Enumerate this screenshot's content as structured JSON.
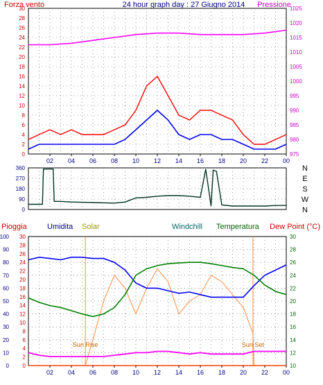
{
  "chart_data": [
    {
      "id": "wind",
      "type": "line",
      "title": "24 hour graph day : 27 Giugno 2014",
      "left_label": "Forza vento",
      "right_label": "Pressione",
      "y_left_ticks": [
        0,
        2,
        4,
        6,
        8,
        10,
        12,
        14,
        16,
        18,
        20,
        22,
        24,
        26,
        28,
        30
      ],
      "y_right_ticks": [
        975,
        980,
        985,
        990,
        995,
        1000,
        1005,
        1010,
        1015,
        1020,
        1025
      ],
      "ylim_left": [
        0,
        30
      ],
      "ylim_right": [
        975,
        1025
      ],
      "x_ticks": [
        "02",
        "04",
        "06",
        "08",
        "10",
        "12",
        "14",
        "16",
        "18",
        "20",
        "22",
        "00"
      ],
      "grid": true,
      "series": [
        {
          "color": "#ff0000",
          "axis": "left",
          "x": [
            0,
            1,
            2,
            3,
            4,
            5,
            6,
            7,
            8,
            9,
            10,
            11,
            12,
            13,
            14,
            15,
            16,
            17,
            18,
            19,
            20,
            21,
            22,
            23,
            24
          ],
          "y": [
            3,
            4,
            5,
            4,
            5,
            4,
            4,
            4,
            5,
            6,
            9,
            14,
            16,
            12,
            8,
            7,
            9,
            9,
            8,
            7,
            4,
            2,
            2,
            3,
            4
          ]
        },
        {
          "color": "#0000ff",
          "axis": "left",
          "x": [
            0,
            1,
            2,
            3,
            4,
            5,
            6,
            7,
            8,
            9,
            10,
            11,
            12,
            13,
            14,
            15,
            16,
            17,
            18,
            19,
            20,
            21,
            22,
            23,
            24
          ],
          "y": [
            1,
            2,
            2,
            2,
            2,
            2,
            2,
            2,
            2,
            3,
            5,
            7,
            9,
            7,
            4,
            3,
            4,
            4,
            3,
            3,
            2,
            1,
            1,
            1,
            2
          ]
        },
        {
          "color": "#ff00ff",
          "axis": "right",
          "x": [
            0,
            2,
            4,
            6,
            8,
            10,
            12,
            14,
            16,
            18,
            20,
            22,
            24
          ],
          "y": [
            1012.5,
            1012.5,
            1013,
            1014,
            1015,
            1016,
            1016.5,
            1016.5,
            1016,
            1016,
            1016,
            1016.5,
            1017.5
          ]
        }
      ]
    },
    {
      "id": "direction",
      "type": "line",
      "y_left_ticks": [
        0,
        90,
        180,
        270,
        360
      ],
      "ylim": [
        0,
        360
      ],
      "compass_labels": [
        "N",
        "W",
        "S",
        "E",
        "N"
      ],
      "grid": true,
      "series": [
        {
          "color": "#003322",
          "x": [
            0,
            1.3,
            1.4,
            2.3,
            2.4,
            3,
            4,
            6,
            8,
            9,
            10,
            11,
            12,
            13,
            14,
            15,
            16,
            16.5,
            17,
            17.2,
            17.5,
            18,
            19,
            20,
            21,
            22,
            23,
            24
          ],
          "y": [
            45,
            45,
            350,
            350,
            70,
            70,
            65,
            60,
            55,
            65,
            100,
            105,
            115,
            120,
            120,
            115,
            105,
            350,
            30,
            340,
            330,
            40,
            30,
            30,
            30,
            30,
            35,
            35
          ]
        }
      ]
    },
    {
      "id": "weather",
      "type": "line",
      "labels": [
        "Pioggia",
        "Umidita",
        "Solar",
        "Windchill",
        "Temperatura",
        "Dew Point (°C)"
      ],
      "y_left_ticks": [
        0,
        10,
        20,
        30,
        40,
        50,
        60,
        70,
        80,
        90,
        100
      ],
      "y_left2_ticks": [
        0,
        2,
        4,
        6,
        8,
        10,
        12,
        14,
        16,
        18,
        20,
        22,
        24,
        26,
        28,
        30
      ],
      "y_right_ticks": [
        10,
        12,
        14,
        16,
        18,
        20,
        22,
        24,
        26,
        28,
        30
      ],
      "ylim_left": [
        0,
        100
      ],
      "ylim_right": [
        10,
        30
      ],
      "x_ticks": [
        "02",
        "04",
        "06",
        "08",
        "10",
        "12",
        "14",
        "16",
        "18",
        "20",
        "22",
        "00"
      ],
      "annotations": [
        {
          "text": "Sun Rise",
          "x": 5.3
        },
        {
          "text": "Sun Set",
          "x": 20.9
        }
      ],
      "grid": true,
      "series": [
        {
          "color": "#0000ff",
          "axis": "left",
          "x": [
            0,
            1,
            2,
            3,
            4,
            5,
            6,
            7,
            8,
            9,
            10,
            11,
            12,
            13,
            14,
            15,
            16,
            17,
            18,
            19,
            20,
            21,
            22,
            23,
            24
          ],
          "y": [
            82,
            84,
            83,
            82,
            84,
            84,
            83,
            83,
            80,
            74,
            64,
            60,
            60,
            58,
            56,
            57,
            55,
            53,
            53,
            53,
            53,
            62,
            70,
            74,
            78
          ]
        },
        {
          "color": "#008000",
          "axis": "right",
          "x": [
            0,
            1,
            2,
            3,
            4,
            5,
            6,
            7,
            8,
            9,
            10,
            11,
            12,
            13,
            14,
            15,
            16,
            17,
            18,
            19,
            20,
            21,
            22,
            23,
            24
          ],
          "y": [
            20.5,
            19.8,
            19.3,
            19,
            18.5,
            18,
            17.6,
            18,
            19,
            21,
            24,
            25,
            25.5,
            25.8,
            25.9,
            26,
            26,
            25.8,
            25.5,
            25.2,
            25,
            24,
            22.5,
            21.5,
            21
          ]
        },
        {
          "color": "#ff00ff",
          "axis": "left",
          "x": [
            0,
            1,
            2,
            3,
            4,
            5,
            6,
            7,
            8,
            9,
            10,
            11,
            12,
            13,
            14,
            15,
            16,
            17,
            18,
            19,
            20,
            21,
            22,
            23,
            24
          ],
          "y": [
            10,
            8,
            7,
            7,
            7,
            7,
            7,
            7,
            8,
            9,
            10,
            10,
            11,
            11,
            10,
            9,
            10,
            9,
            9,
            9,
            9,
            11,
            11,
            11,
            11
          ]
        },
        {
          "color": "#ff8c42",
          "axis": "left",
          "x": [
            0,
            5.3,
            6,
            7,
            8,
            9,
            10,
            11,
            12,
            13,
            14,
            15,
            16,
            17,
            18,
            19,
            20,
            20.9,
            21,
            24
          ],
          "y": [
            0,
            0,
            20,
            50,
            70,
            60,
            40,
            60,
            75,
            65,
            40,
            50,
            55,
            70,
            65,
            55,
            45,
            25,
            0,
            0
          ]
        },
        {
          "color": "#ff4400",
          "axis": "left",
          "x": [
            0,
            24
          ],
          "y": [
            0,
            0
          ]
        }
      ]
    }
  ]
}
